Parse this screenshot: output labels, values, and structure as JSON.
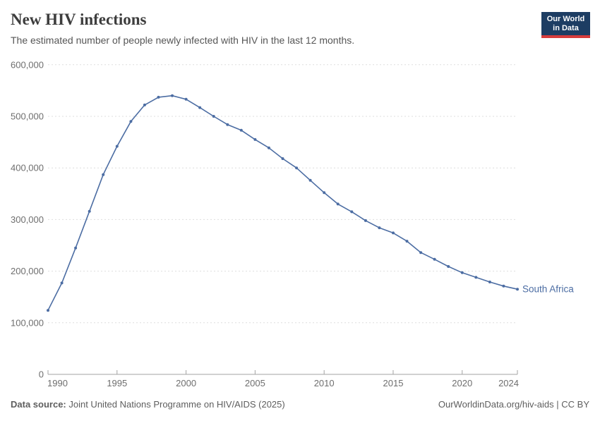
{
  "header": {
    "title": "New HIV infections",
    "subtitle": "The estimated number of people newly infected with HIV in the last 12 months.",
    "logo_line1": "Our World",
    "logo_line2": "in Data"
  },
  "chart_data": {
    "type": "line",
    "title": "New HIV infections",
    "xlabel": "",
    "ylabel": "",
    "grid": "horizontal-dashed",
    "legend_position": "end-of-line-label",
    "xlim": [
      1990,
      2024
    ],
    "ylim": [
      0,
      600000
    ],
    "x_ticks": [
      1990,
      1995,
      2000,
      2005,
      2010,
      2015,
      2020,
      2024
    ],
    "y_ticks": [
      0,
      100000,
      200000,
      300000,
      400000,
      500000,
      600000
    ],
    "y_tick_labels": [
      "0",
      "100,000",
      "200,000",
      "300,000",
      "400,000",
      "500,000",
      "600,000"
    ],
    "x": [
      1990,
      1991,
      1992,
      1993,
      1994,
      1995,
      1996,
      1997,
      1998,
      1999,
      2000,
      2001,
      2002,
      2003,
      2004,
      2005,
      2006,
      2007,
      2008,
      2009,
      2010,
      2011,
      2012,
      2013,
      2014,
      2015,
      2016,
      2017,
      2018,
      2019,
      2020,
      2021,
      2022,
      2023,
      2024
    ],
    "series": [
      {
        "name": "South Africa",
        "values": [
          124000,
          177000,
          245000,
          316000,
          387000,
          442000,
          490000,
          522000,
          537000,
          540000,
          533000,
          517000,
          500000,
          484000,
          473000,
          455000,
          439000,
          418000,
          400000,
          376000,
          352000,
          330000,
          315000,
          298000,
          284000,
          274000,
          258000,
          236000,
          223000,
          209000,
          197000,
          188000,
          179000,
          171000,
          165000
        ]
      }
    ]
  },
  "footer": {
    "source_label": "Data source:",
    "source_text": " Joint United Nations Programme on HIV/AIDS (2025)",
    "rights_text": "OurWorldinData.org/hiv-aids | CC BY"
  },
  "colors": {
    "line": "#4c6da3",
    "grid": "#dedede",
    "axis": "#a3a3a3",
    "tick_text": "#6e6e6e",
    "logo_bg": "#1d3d63",
    "logo_accent": "#d73c3c"
  }
}
